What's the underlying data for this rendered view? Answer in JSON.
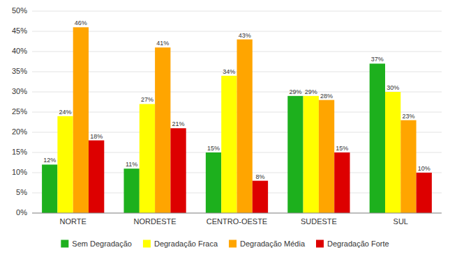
{
  "chart_data": {
    "type": "bar",
    "categories": [
      "NORTE",
      "NORDESTE",
      "CENTRO-OESTE",
      "SUDESTE",
      "SUL"
    ],
    "series": [
      {
        "name": "Sem Degradação",
        "color": "#1DB01D",
        "values": [
          12,
          11,
          15,
          29,
          37
        ],
        "value_labels": [
          "12%",
          "11%",
          "15%",
          "29%",
          "37%"
        ]
      },
      {
        "name": "Degradação Fraca",
        "color": "#FFFF00",
        "values": [
          24,
          27,
          34,
          29,
          30
        ],
        "value_labels": [
          "24%",
          "27%",
          "34%",
          "29%",
          "30%"
        ]
      },
      {
        "name": "Degradação Média",
        "color": "#FFA500",
        "values": [
          46,
          41,
          43,
          28,
          23
        ],
        "value_labels": [
          "46%",
          "41%",
          "43%",
          "28%",
          "23%"
        ]
      },
      {
        "name": "Degradação Forte",
        "color": "#DD0000",
        "values": [
          18,
          21,
          8,
          15,
          10
        ],
        "value_labels": [
          "18%",
          "21%",
          "8%",
          "15%",
          "10%"
        ]
      }
    ],
    "ylim": [
      0,
      50
    ],
    "yticks": [
      {
        "value": 0,
        "label": "0%"
      },
      {
        "value": 5,
        "label": "5%"
      },
      {
        "value": 10,
        "label": "10%"
      },
      {
        "value": 15,
        "label": "15%"
      },
      {
        "value": 20,
        "label": "20%"
      },
      {
        "value": 25,
        "label": "25%"
      },
      {
        "value": 30,
        "label": "30%"
      },
      {
        "value": 35,
        "label": "35%"
      },
      {
        "value": 40,
        "label": "40%"
      },
      {
        "value": 45,
        "label": "45%"
      },
      {
        "value": 50,
        "label": "50%"
      }
    ],
    "grid": true,
    "legend": "bottom",
    "data_labels": true
  }
}
